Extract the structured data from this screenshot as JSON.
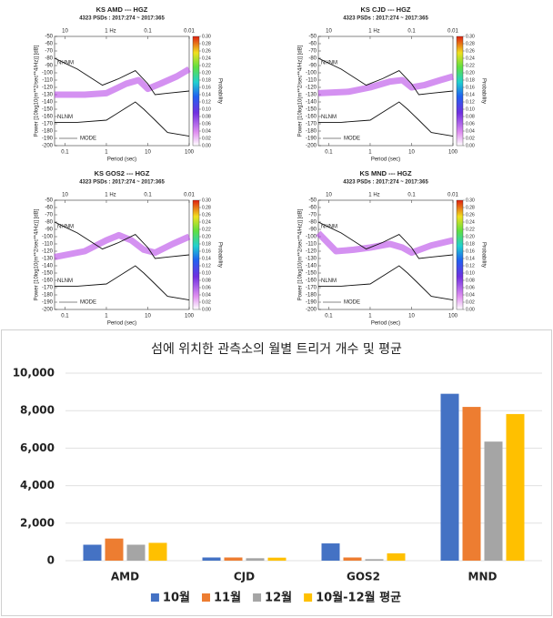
{
  "psd_common": {
    "xlabel": "Period (sec)",
    "ylabel": "Power [10log10(m**2/sec**4/Hz)] [dB]",
    "colorbar_label": "Probability",
    "top_axis_label": "Hz",
    "xlim": [
      0.056,
      100
    ],
    "xticks": [
      0.1,
      1,
      10,
      100
    ],
    "top_ticks": [
      {
        "value": 0.1,
        "label": "10"
      },
      {
        "value": 1,
        "label": "1"
      },
      {
        "value": 10,
        "label": "0.1"
      },
      {
        "value": 100,
        "label": "0.01"
      }
    ],
    "ylim": [
      -200,
      -50
    ],
    "yticks": [
      -50,
      -60,
      -70,
      -80,
      -90,
      -100,
      -110,
      -120,
      -130,
      -140,
      -150,
      -160,
      -170,
      -180,
      -190,
      -200
    ],
    "clim": [
      0,
      0.3
    ],
    "cticks": [
      {
        "value": 0,
        "label": "0.00"
      },
      {
        "value": 0.02,
        "label": "0.02"
      },
      {
        "value": 0.04,
        "label": "0.04"
      },
      {
        "value": 0.06,
        "label": "0.06"
      },
      {
        "value": 0.08,
        "label": "0.08"
      },
      {
        "value": 0.1,
        "label": "0.10"
      },
      {
        "value": 0.12,
        "label": "0.12"
      },
      {
        "value": 0.14,
        "label": "0.14"
      },
      {
        "value": 0.16,
        "label": "0.16"
      },
      {
        "value": 0.18,
        "label": "0.18"
      },
      {
        "value": 0.2,
        "label": "0.20"
      },
      {
        "value": 0.22,
        "label": "0.22"
      },
      {
        "value": 0.24,
        "label": "0.24"
      },
      {
        "value": 0.26,
        "label": "0.26"
      },
      {
        "value": 0.28,
        "label": "0.28"
      },
      {
        "value": 0.3,
        "label": "0.30"
      }
    ],
    "nhnm": {
      "name": "NHNM",
      "x": [
        0.056,
        0.2,
        0.8,
        2,
        5,
        10,
        15,
        30,
        100
      ],
      "values": [
        -80,
        -95,
        -117,
        -108,
        -97,
        -115,
        -130,
        -128,
        -125
      ]
    },
    "nlnm": {
      "name": "NLNM",
      "x": [
        0.056,
        0.2,
        1,
        3,
        5,
        8,
        15,
        30,
        100
      ],
      "values": [
        -168,
        -168,
        -165,
        -148,
        -140,
        -150,
        -165,
        -182,
        -187
      ]
    },
    "mode_label": "MODE"
  },
  "chart_data": [
    {
      "type": "psd",
      "title": "KS AMD --- HGZ",
      "subtitle": "4323 PSDs : 2017:274 ~ 2017:365",
      "mode": {
        "x": [
          0.056,
          0.3,
          1,
          3,
          6,
          10,
          20,
          50,
          100
        ],
        "values": [
          -130,
          -130,
          -128,
          -115,
          -110,
          -122,
          -115,
          -105,
          -95
        ]
      }
    },
    {
      "type": "psd",
      "title": "KS CJD --- HGZ",
      "subtitle": "4323 PSDs : 2017:274 ~ 2017:365",
      "mode": {
        "x": [
          0.056,
          0.3,
          1,
          3,
          6,
          10,
          20,
          50,
          100
        ],
        "values": [
          -128,
          -126,
          -120,
          -112,
          -110,
          -120,
          -117,
          -110,
          -105
        ]
      }
    },
    {
      "type": "psd",
      "title": "KS GOS2 --- HGZ",
      "subtitle": "4323 PSDs : 2017:274 ~ 2017:365",
      "mode": {
        "x": [
          0.056,
          0.3,
          1,
          2,
          4,
          8,
          15,
          40,
          100
        ],
        "values": [
          -128,
          -120,
          -105,
          -98,
          -105,
          -118,
          -122,
          -110,
          -100
        ]
      }
    },
    {
      "type": "psd",
      "title": "KS MND --- HGZ",
      "subtitle": "4323 PSDs : 2017:274 ~ 2017:365",
      "mode": {
        "x": [
          0.056,
          0.15,
          0.4,
          1,
          3,
          6,
          10,
          30,
          100
        ],
        "values": [
          -95,
          -120,
          -118,
          -115,
          -110,
          -115,
          -122,
          -112,
          -105
        ]
      }
    },
    {
      "type": "bar",
      "title": "섬에 위치한 관측소의 월별 트리거 개수 및 평균",
      "categories": [
        "AMD",
        "CJD",
        "GOS2",
        "MND"
      ],
      "series": [
        {
          "name": "10월",
          "color": "#4472c4",
          "values": [
            850,
            170,
            920,
            8900
          ]
        },
        {
          "name": "11월",
          "color": "#ed7d31",
          "values": [
            1180,
            170,
            170,
            8200
          ]
        },
        {
          "name": "12월",
          "color": "#a5a5a5",
          "values": [
            850,
            130,
            80,
            6350
          ]
        },
        {
          "name": "10월-12월 평균",
          "color": "#ffc000",
          "values": [
            950,
            160,
            390,
            7820
          ]
        }
      ],
      "ylim": [
        0,
        10000
      ],
      "yticks": [
        0,
        {
          "value": 2000,
          "label": "2,000"
        },
        {
          "value": 4000,
          "label": "4,000"
        },
        {
          "value": 6000,
          "label": "6,000"
        },
        {
          "value": 8000,
          "label": "8,000"
        },
        {
          "value": 10000,
          "label": "10,000"
        }
      ],
      "grid": true,
      "legend": "bottom"
    }
  ]
}
